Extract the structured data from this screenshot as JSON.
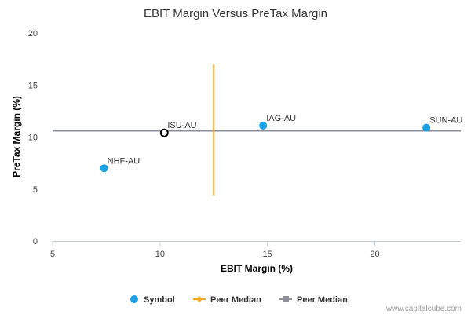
{
  "chart_data": {
    "type": "scatter",
    "title": "EBIT Margin Versus PreTax Margin",
    "xlabel": "EBIT Margin (%)",
    "ylabel": "PreTax Margin (%)",
    "xlim": [
      5,
      24
    ],
    "ylim": [
      0,
      20
    ],
    "x_ticks": [
      "5",
      "10",
      "15",
      "20"
    ],
    "y_ticks": [
      "0",
      "5",
      "10",
      "15",
      "20"
    ],
    "grid": false,
    "legend_position": "bottom-center",
    "series": [
      {
        "name": "Symbol",
        "color": "#1aa1e6",
        "points": [
          {
            "label": "NHF-AU",
            "x": 7.4,
            "y": 7.0
          },
          {
            "label": "IAG-AU",
            "x": 14.8,
            "y": 11.1
          },
          {
            "label": "SUN-AU",
            "x": 22.4,
            "y": 10.9
          }
        ]
      }
    ],
    "highlight_point": {
      "label": "ISU-AU",
      "x": 10.2,
      "y": 10.4,
      "color": "#000000"
    },
    "peer_median_x": {
      "name": "Peer Median",
      "value": 12.5,
      "y_range": [
        4.4,
        17.0
      ],
      "color": "#f5a623"
    },
    "peer_median_y": {
      "name": "Peer Median",
      "value": 10.6,
      "x_range": [
        5,
        24
      ],
      "color": "#8c8f99"
    }
  },
  "legend": [
    {
      "label": "Symbol",
      "kind": "dot",
      "color": "#1aa1e6"
    },
    {
      "label": "Peer Median",
      "kind": "line-diamond",
      "color": "#f5a623"
    },
    {
      "label": "Peer Median",
      "kind": "line-square",
      "color": "#8c8f99"
    }
  ],
  "watermark": "www.capitalcube.com"
}
